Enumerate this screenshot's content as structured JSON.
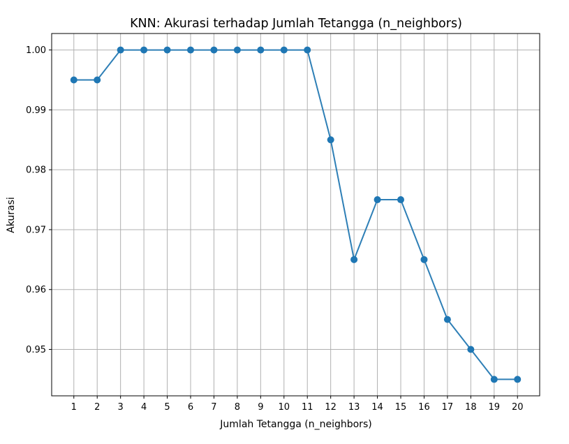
{
  "chart_data": {
    "type": "line",
    "title": "KNN: Akurasi terhadap Jumlah Tetangga (n_neighbors)",
    "xlabel": "Jumlah Tetangga (n_neighbors)",
    "ylabel": "Akurasi",
    "x": [
      1,
      2,
      3,
      4,
      5,
      6,
      7,
      8,
      9,
      10,
      11,
      12,
      13,
      14,
      15,
      16,
      17,
      18,
      19,
      20
    ],
    "y": [
      0.995,
      0.995,
      1.0,
      1.0,
      1.0,
      1.0,
      1.0,
      1.0,
      1.0,
      1.0,
      1.0,
      0.985,
      0.965,
      0.975,
      0.975,
      0.965,
      0.955,
      0.95,
      0.945,
      0.945
    ],
    "xticks": [
      "1",
      "2",
      "3",
      "4",
      "5",
      "6",
      "7",
      "8",
      "9",
      "10",
      "11",
      "12",
      "13",
      "14",
      "15",
      "16",
      "17",
      "18",
      "19",
      "20"
    ],
    "yticks": [
      0.95,
      0.96,
      0.97,
      0.98,
      0.99,
      1.0
    ],
    "ytick_labels": [
      "0.95",
      "0.96",
      "0.97",
      "0.98",
      "0.99",
      "1.00"
    ],
    "xlim": [
      0.05,
      20.95
    ],
    "ylim": [
      0.94225,
      1.00275
    ],
    "grid": true,
    "marker": "circle",
    "line_color": "#2e7fb6",
    "marker_color": "#1f77b4"
  }
}
